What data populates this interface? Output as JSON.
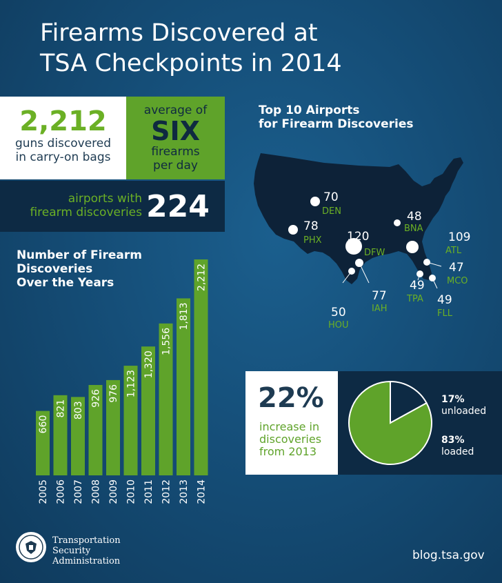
{
  "title": {
    "line1": "Firearms Discovered at",
    "line2": "TSA Checkpoints in 2014"
  },
  "stats": {
    "guns_count": "2,212",
    "guns_label_1": "guns discovered",
    "guns_label_2": "in carry-on bags",
    "avg_label_1": "average of",
    "avg_value": "SIX",
    "avg_label_2": "firearms",
    "avg_label_3": "per day",
    "airports_label_1": "airports with",
    "airports_label_2": "firearm discoveries",
    "airports_count": "224"
  },
  "bar_section": {
    "title_1": "Number of Firearm",
    "title_2": "Discoveries",
    "title_3": "Over the Years"
  },
  "map_section": {
    "title_1": "Top 10 Airports",
    "title_2": "for Firearm Discoveries",
    "airports": [
      {
        "code": "DEN",
        "count": "70"
      },
      {
        "code": "PHX",
        "count": "78"
      },
      {
        "code": "DFW",
        "count": "120"
      },
      {
        "code": "BNA",
        "count": "48"
      },
      {
        "code": "ATL",
        "count": "109"
      },
      {
        "code": "MCO",
        "count": "47"
      },
      {
        "code": "TPA",
        "count": "49"
      },
      {
        "code": "FLL",
        "count": "49"
      },
      {
        "code": "IAH",
        "count": "77"
      },
      {
        "code": "HOU",
        "count": "50"
      }
    ]
  },
  "pie_section": {
    "increase_pct": "22%",
    "increase_1": "increase in",
    "increase_2": "discoveries",
    "increase_3": "from 2013",
    "unloaded_pct": "17%",
    "unloaded_label": "unloaded",
    "loaded_pct": "83%",
    "loaded_label": "loaded"
  },
  "footer": {
    "org_1": "Transportation",
    "org_2": "Security",
    "org_3": "Administration",
    "url": "blog.tsa.gov"
  },
  "colors": {
    "green": "#5fa32a",
    "dark": "#0d2a44",
    "bg": "#154e78"
  },
  "chart_data": [
    {
      "type": "bar",
      "title": "Number of Firearm Discoveries Over the Years",
      "categories": [
        "2005",
        "2006",
        "2007",
        "2008",
        "2009",
        "2010",
        "2011",
        "2012",
        "2013",
        "2014"
      ],
      "values": [
        660,
        821,
        803,
        926,
        976,
        1123,
        1320,
        1556,
        1813,
        2212
      ],
      "value_labels": [
        "660",
        "821",
        "803",
        "926",
        "976",
        "1,123",
        "1,320",
        "1,556",
        "1,813",
        "2,212"
      ],
      "ylim": [
        0,
        2212
      ]
    },
    {
      "type": "pie",
      "slices": [
        {
          "label": "unloaded",
          "value": 17
        },
        {
          "label": "loaded",
          "value": 83
        }
      ]
    }
  ]
}
